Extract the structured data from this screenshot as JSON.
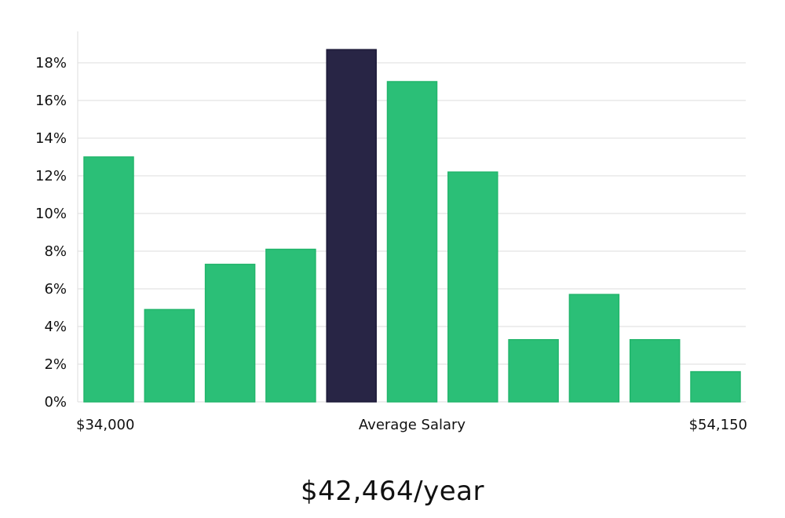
{
  "chart_data": {
    "type": "bar",
    "title": "",
    "xlabel": "Average Salary",
    "ylabel": "",
    "x_range_labels": {
      "min": "$34,000",
      "max": "$54,150"
    },
    "ylim": [
      0,
      20
    ],
    "y_ticks": [
      0,
      2,
      4,
      6,
      8,
      10,
      12,
      14,
      16,
      18
    ],
    "y_tick_suffix": "%",
    "grid": true,
    "legend": "none",
    "values": [
      13.0,
      4.9,
      7.3,
      8.1,
      18.7,
      17.0,
      12.2,
      3.3,
      5.7,
      3.3,
      1.6
    ],
    "highlight_index": 4,
    "colors": {
      "bar": "#2bbf77",
      "highlight": "#282545",
      "grid": "#dddddd"
    }
  },
  "summary": {
    "salary": "$42,464/year"
  }
}
